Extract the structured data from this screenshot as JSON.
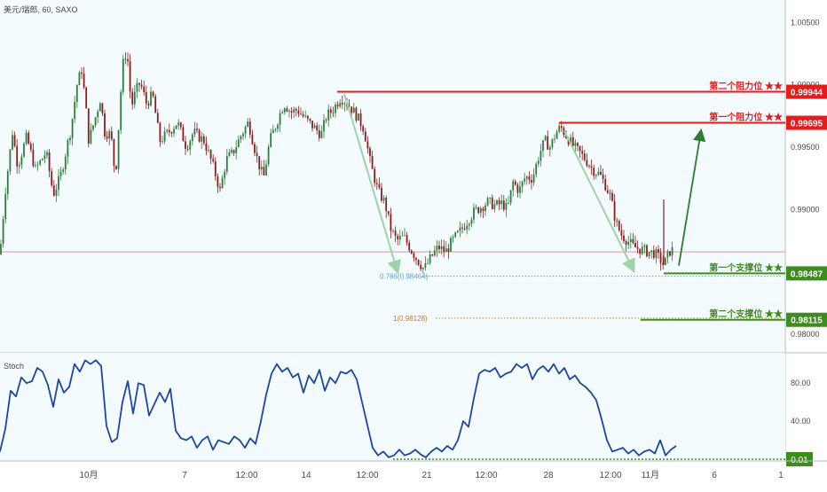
{
  "header": {
    "symbol_label": "美元/瑞郎, 60, SAXO"
  },
  "colors": {
    "background": "#ffffff",
    "plot_bg": "#f3fbff",
    "axis_line": "#b7bfc6",
    "label_text": "#4a4a4a",
    "candle_up": "#2f7d3a",
    "candle_down": "#8e1c1c",
    "resistance": "#e01e1e",
    "support": "#3c8c1e",
    "fib_0786": "#5aa3c8",
    "fib_1": "#c77b2a",
    "pattern_arrow": "#9fd3a8",
    "projection_arrow": "#2e7d2e",
    "stoch_line": "#1d46a3",
    "stoch_baseline": "#3c8c1e",
    "price_hline": "#d89a9a"
  },
  "chart_data": [
    {
      "type": "candlestick",
      "id": "price",
      "y_axis": {
        "range": [
          0.9785,
          1.0068
        ],
        "ticks": [
          0.98,
          0.985,
          0.99,
          0.995,
          1.0,
          1.005
        ],
        "tick_labels": [
          "0.98000",
          "0.98500",
          "0.99000",
          "0.99500",
          "1.00000",
          "1.00500"
        ]
      },
      "x_axis": {
        "ticks": [
          "10月",
          "7",
          "12:00",
          "14",
          "12:00",
          "21",
          "12:00",
          "28",
          "12:00",
          "11月",
          "6",
          "1"
        ]
      },
      "series_anchors": [
        [
          0,
          0.9864
        ],
        [
          6,
          0.9915
        ],
        [
          14,
          0.9962
        ],
        [
          20,
          0.9935
        ],
        [
          30,
          0.9958
        ],
        [
          40,
          0.9932
        ],
        [
          52,
          0.9946
        ],
        [
          60,
          0.9912
        ],
        [
          68,
          0.9926
        ],
        [
          80,
          0.9965
        ],
        [
          87,
          1.0001
        ],
        [
          92,
          1.0012
        ],
        [
          96,
          0.9988
        ],
        [
          100,
          0.9955
        ],
        [
          108,
          0.9975
        ],
        [
          113,
          0.9989
        ],
        [
          118,
          0.9962
        ],
        [
          125,
          0.996
        ],
        [
          130,
          0.9925
        ],
        [
          138,
          1.0015
        ],
        [
          143,
          1.0028
        ],
        [
          148,
          0.9982
        ],
        [
          153,
          0.9995
        ],
        [
          158,
          1.0002
        ],
        [
          165,
          0.9985
        ],
        [
          172,
          0.9992
        ],
        [
          180,
          0.9955
        ],
        [
          190,
          0.9962
        ],
        [
          200,
          0.997
        ],
        [
          210,
          0.995
        ],
        [
          218,
          0.9962
        ],
        [
          230,
          0.9955
        ],
        [
          240,
          0.9935
        ],
        [
          248,
          0.9915
        ],
        [
          255,
          0.994
        ],
        [
          262,
          0.9945
        ],
        [
          272,
          0.996
        ],
        [
          280,
          0.997
        ],
        [
          290,
          0.994
        ],
        [
          297,
          0.9925
        ],
        [
          304,
          0.9955
        ],
        [
          312,
          0.997
        ],
        [
          320,
          0.9985
        ],
        [
          328,
          0.9978
        ],
        [
          335,
          0.998
        ],
        [
          345,
          0.9972
        ],
        [
          355,
          0.9965
        ],
        [
          362,
          0.996
        ],
        [
          368,
          0.9975
        ],
        [
          375,
          0.998
        ],
        [
          384,
          0.999
        ],
        [
          392,
          0.9985
        ],
        [
          402,
          0.9975
        ],
        [
          410,
          0.9965
        ],
        [
          418,
          0.9935
        ],
        [
          426,
          0.9915
        ],
        [
          434,
          0.9905
        ],
        [
          440,
          0.9885
        ],
        [
          447,
          0.9875
        ],
        [
          455,
          0.9878
        ],
        [
          463,
          0.9868
        ],
        [
          470,
          0.986
        ],
        [
          478,
          0.9852
        ],
        [
          486,
          0.9862
        ],
        [
          494,
          0.987
        ],
        [
          502,
          0.9866
        ],
        [
          510,
          0.9875
        ],
        [
          518,
          0.9882
        ],
        [
          526,
          0.989
        ],
        [
          534,
          0.9898
        ],
        [
          542,
          0.9902
        ],
        [
          550,
          0.9906
        ],
        [
          558,
          0.9903
        ],
        [
          566,
          0.9905
        ],
        [
          572,
          0.99
        ],
        [
          578,
          0.9922
        ],
        [
          585,
          0.9915
        ],
        [
          592,
          0.9926
        ],
        [
          600,
          0.9925
        ],
        [
          608,
          0.9945
        ],
        [
          614,
          0.9955
        ],
        [
          620,
          0.995
        ],
        [
          627,
          0.9962
        ],
        [
          632,
          0.9966
        ],
        [
          640,
          0.9957
        ],
        [
          647,
          0.995
        ],
        [
          654,
          0.9945
        ],
        [
          660,
          0.994
        ],
        [
          668,
          0.9932
        ],
        [
          676,
          0.9928
        ],
        [
          682,
          0.992
        ],
        [
          688,
          0.991
        ],
        [
          694,
          0.989
        ],
        [
          700,
          0.988
        ],
        [
          707,
          0.9875
        ],
        [
          714,
          0.987
        ],
        [
          722,
          0.9868
        ],
        [
          730,
          0.9866
        ],
        [
          738,
          0.9865
        ],
        [
          744,
          0.986
        ],
        [
          748,
          0.9855
        ],
        [
          752,
          0.9862
        ],
        [
          756,
          0.9868
        ],
        [
          760,
          0.9866
        ]
      ],
      "levels": [
        {
          "name": "第二个阻力位 ★★",
          "value": 0.99944,
          "label": "0.99944",
          "kind": "resistance",
          "x_start": 380
        },
        {
          "name": "第一个阻力位 ★★",
          "value": 0.99695,
          "label": "0.99695",
          "kind": "resistance",
          "x_start": 630
        },
        {
          "name": "第一个支撑位 ★★",
          "value": 0.98487,
          "label": "0.98487",
          "kind": "support",
          "x_start": 748
        },
        {
          "name": "第二个支撑位 ★★",
          "value": 0.98115,
          "label": "0.98115",
          "kind": "support",
          "x_start": 722
        }
      ],
      "fibonacci": [
        {
          "label": "0.786(0.98464)",
          "value": 0.98464,
          "x_start": 428
        },
        {
          "label": "1(0.98128)",
          "value": 0.98128,
          "x_start": 443
        }
      ],
      "reference_line": {
        "value": 0.9866
      },
      "pattern_arrows": [
        {
          "from": [
            388,
            0.9993
          ],
          "to": [
            448,
            0.985
          ]
        },
        {
          "from": [
            636,
            0.9963
          ],
          "to": [
            714,
            0.9851
          ]
        }
      ],
      "projection_arrow": {
        "from": [
          765,
          0.9855
        ],
        "to": [
          790,
          0.9963
        ]
      }
    },
    {
      "type": "line",
      "id": "stoch",
      "title": "Stoch",
      "y_axis": {
        "range": [
          0,
          110
        ],
        "ticks": [
          40,
          80
        ],
        "tick_labels": [
          "40.00",
          "80.00"
        ]
      },
      "baseline": {
        "value": 0.01,
        "label": "0.01"
      },
      "series": [
        {
          "values_anchors": [
            [
              0,
              8
            ],
            [
              6,
              32
            ],
            [
              12,
              72
            ],
            [
              18,
              66
            ],
            [
              24,
              86
            ],
            [
              30,
              80
            ],
            [
              36,
              82
            ],
            [
              42,
              96
            ],
            [
              48,
              92
            ],
            [
              54,
              78
            ],
            [
              60,
              55
            ],
            [
              66,
              84
            ],
            [
              72,
              70
            ],
            [
              78,
              76
            ],
            [
              84,
              100
            ],
            [
              90,
              92
            ],
            [
              96,
              104
            ],
            [
              102,
              100
            ],
            [
              108,
              104
            ],
            [
              114,
              98
            ],
            [
              120,
              35
            ],
            [
              126,
              18
            ],
            [
              132,
              22
            ],
            [
              138,
              60
            ],
            [
              144,
              82
            ],
            [
              150,
              48
            ],
            [
              156,
              80
            ],
            [
              162,
              78
            ],
            [
              168,
              46
            ],
            [
              174,
              58
            ],
            [
              180,
              70
            ],
            [
              186,
              60
            ],
            [
              192,
              74
            ],
            [
              198,
              30
            ],
            [
              204,
              22
            ],
            [
              210,
              20
            ],
            [
              216,
              24
            ],
            [
              222,
              12
            ],
            [
              228,
              20
            ],
            [
              234,
              24
            ],
            [
              240,
              10
            ],
            [
              246,
              20
            ],
            [
              252,
              18
            ],
            [
              258,
              16
            ],
            [
              264,
              24
            ],
            [
              270,
              20
            ],
            [
              276,
              12
            ],
            [
              282,
              22
            ],
            [
              288,
              16
            ],
            [
              294,
              40
            ],
            [
              300,
              68
            ],
            [
              306,
              90
            ],
            [
              312,
              100
            ],
            [
              318,
              92
            ],
            [
              324,
              96
            ],
            [
              330,
              86
            ],
            [
              336,
              90
            ],
            [
              342,
              70
            ],
            [
              348,
              88
            ],
            [
              354,
              80
            ],
            [
              360,
              94
            ],
            [
              366,
              72
            ],
            [
              372,
              86
            ],
            [
              378,
              80
            ],
            [
              384,
              92
            ],
            [
              390,
              90
            ],
            [
              396,
              94
            ],
            [
              402,
              84
            ],
            [
              408,
              60
            ],
            [
              414,
              36
            ],
            [
              420,
              12
            ],
            [
              426,
              4
            ],
            [
              432,
              8
            ],
            [
              438,
              2
            ],
            [
              444,
              4
            ],
            [
              450,
              10
            ],
            [
              456,
              4
            ],
            [
              462,
              6
            ],
            [
              468,
              10
            ],
            [
              474,
              5
            ],
            [
              480,
              2
            ],
            [
              486,
              8
            ],
            [
              492,
              12
            ],
            [
              498,
              8
            ],
            [
              504,
              14
            ],
            [
              510,
              10
            ],
            [
              516,
              20
            ],
            [
              522,
              40
            ],
            [
              528,
              34
            ],
            [
              534,
              64
            ],
            [
              540,
              90
            ],
            [
              546,
              94
            ],
            [
              552,
              92
            ],
            [
              558,
              96
            ],
            [
              564,
              86
            ],
            [
              570,
              90
            ],
            [
              576,
              92
            ],
            [
              582,
              100
            ],
            [
              588,
              96
            ],
            [
              594,
              100
            ],
            [
              600,
              84
            ],
            [
              606,
              94
            ],
            [
              612,
              98
            ],
            [
              618,
              92
            ],
            [
              624,
              100
            ],
            [
              630,
              90
            ],
            [
              636,
              96
            ],
            [
              642,
              84
            ],
            [
              648,
              88
            ],
            [
              654,
              80
            ],
            [
              660,
              76
            ],
            [
              666,
              70
            ],
            [
              672,
              62
            ],
            [
              678,
              42
            ],
            [
              684,
              20
            ],
            [
              690,
              8
            ],
            [
              696,
              10
            ],
            [
              702,
              12
            ],
            [
              708,
              6
            ],
            [
              714,
              10
            ],
            [
              720,
              4
            ],
            [
              726,
              8
            ],
            [
              732,
              10
            ],
            [
              738,
              6
            ],
            [
              744,
              20
            ],
            [
              750,
              4
            ],
            [
              756,
              10
            ],
            [
              762,
              14
            ]
          ]
        }
      ]
    }
  ]
}
